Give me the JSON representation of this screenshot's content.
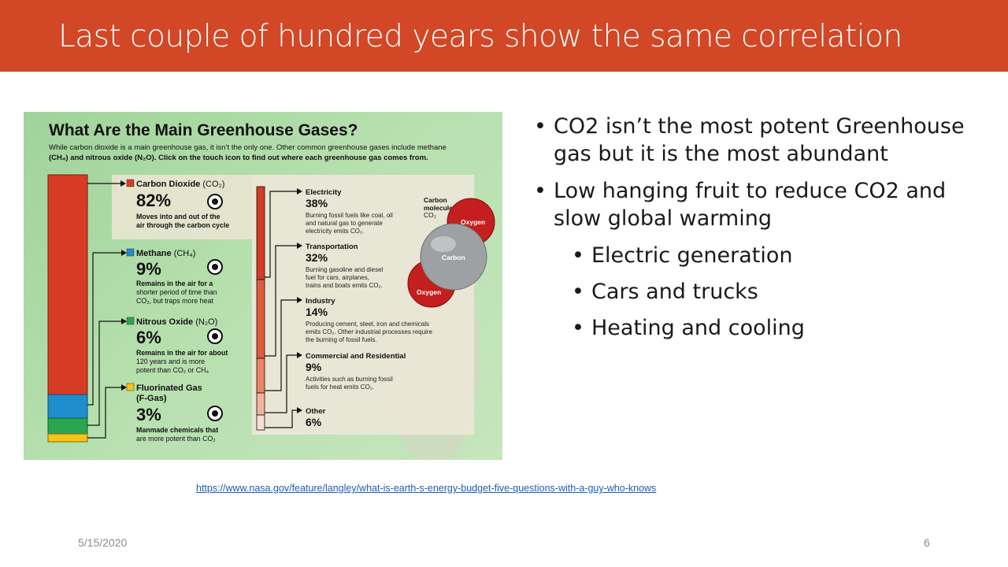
{
  "slide": {
    "title": "Last couple of hundred years show the same correlation",
    "bullets": [
      {
        "text": "CO2 isn’t the most potent Greenhouse gas but it is the most abundant",
        "level": 1
      },
      {
        "text": "Low hanging fruit to reduce CO2 and slow global warming",
        "level": 1
      },
      {
        "text": "Electric generation",
        "level": 2
      },
      {
        "text": "Cars and trucks",
        "level": 2
      },
      {
        "text": "Heating and cooling",
        "level": 2
      }
    ],
    "link": "https://www.nasa.gov/feature/langley/what-is-earth-s-energy-budget-five-questions-with-a-guy-who-knows",
    "date": "5/15/2020",
    "page_number": "6",
    "colors": {
      "title_bar": "#d24726",
      "co2": "#d63b25",
      "methane": "#1f8dce",
      "nitrous": "#2aa551",
      "fgas": "#f5c518"
    }
  },
  "infographic": {
    "heading": "What Are the Main Greenhouse Gases?",
    "intro_1": "While carbon dioxide is a main greenhouse gas, it isn’t the only one. Other common greenhouse gases include methane",
    "intro_2": "(CH₄) and nitrous oxide (N₂O). Click on the touch icon to find out where each greenhouse gas comes from.",
    "gases": [
      {
        "name": "Carbon Dioxide",
        "formula": "(CO₂)",
        "percent": "82%",
        "desc": [
          "Moves into and out of the",
          "air through the carbon cycle"
        ]
      },
      {
        "name": "Methane",
        "formula": "(CH₄)",
        "percent": "9%",
        "desc": [
          "Remains in the air for a",
          "shorter period of time than",
          "CO₂, but traps more heat"
        ]
      },
      {
        "name": "Nitrous Oxide",
        "formula": "(N₂O)",
        "percent": "6%",
        "desc": [
          "Remains in the air for about",
          "120 years and is more",
          "potent than CO₂ or CH₄"
        ]
      },
      {
        "name": "Fluorinated Gas",
        "formula": "(F-Gas)",
        "percent": "3%",
        "desc": [
          "Manmade chemicals that",
          "are more potent than CO₂"
        ]
      }
    ],
    "sources": [
      {
        "name": "Electricity",
        "percent": "38%",
        "desc": [
          "Burning fossil fuels like coal, oil",
          "and natural gas to generate",
          "electricity emits CO₂."
        ]
      },
      {
        "name": "Transportation",
        "percent": "32%",
        "desc": [
          "Burning gasoline and diesel",
          "fuel for cars, airplanes,",
          "trains and boats emits CO₂."
        ]
      },
      {
        "name": "Industry",
        "percent": "14%",
        "desc": [
          "Producing cement, steel, iron and chemicals",
          "emits CO₂. Other industrial processes require",
          "the burning of fossil fuels."
        ]
      },
      {
        "name": "Commercial and Residential",
        "percent": "9%",
        "desc": [
          "Activities such as burning fossil",
          "fuels for heat emits CO₂."
        ]
      },
      {
        "name": "Other",
        "percent": "6%",
        "desc": []
      }
    ],
    "molecule": {
      "caption_1": "Carbon",
      "caption_2": "molecule",
      "caption_3": "CO₂",
      "atom_top": "Oxygen",
      "atom_center": "Carbon",
      "atom_bottom": "Oxygen"
    }
  }
}
